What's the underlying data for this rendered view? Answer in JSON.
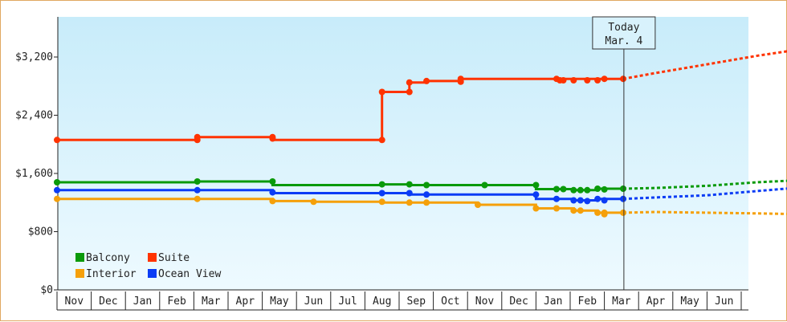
{
  "chart_data": {
    "type": "line",
    "y_ticks": [
      "$0",
      "$800",
      "$1,600",
      "$2,400",
      "$3,200"
    ],
    "ylim": [
      0,
      3200
    ],
    "x_labels": [
      "Nov",
      "Dec",
      "Jan",
      "Feb",
      "Mar",
      "Apr",
      "May",
      "Jun",
      "Jul",
      "Aug",
      "Sep",
      "Oct",
      "Nov",
      "Dec",
      "Jan",
      "Feb",
      "Mar",
      "Apr",
      "May",
      "Jun"
    ],
    "today": {
      "title": "Today",
      "date": "Mar. 4",
      "month_index": 16.07
    },
    "grid": false,
    "legend_position": "bottom-left",
    "series": [
      {
        "name": "Balcony",
        "color": "#0a9a0a",
        "points": [
          [
            -0.5,
            1479
          ],
          [
            3.6,
            1479
          ],
          [
            3.6,
            1490
          ],
          [
            5.8,
            1490
          ],
          [
            5.8,
            1440
          ],
          [
            9.0,
            1440
          ],
          [
            9.0,
            1450
          ],
          [
            9.8,
            1450
          ],
          [
            9.8,
            1440
          ],
          [
            13.5,
            1440
          ],
          [
            13.5,
            1385
          ],
          [
            14.6,
            1385
          ],
          [
            14.6,
            1370
          ],
          [
            15.3,
            1370
          ],
          [
            15.3,
            1390
          ],
          [
            16.05,
            1390
          ]
        ],
        "markers": [
          [
            -0.5,
            1479
          ],
          [
            3.6,
            1490
          ],
          [
            5.8,
            1490
          ],
          [
            9.0,
            1450
          ],
          [
            9.8,
            1450
          ],
          [
            10.3,
            1440
          ],
          [
            12.0,
            1440
          ],
          [
            13.5,
            1440
          ],
          [
            14.1,
            1385
          ],
          [
            14.3,
            1385
          ],
          [
            14.6,
            1370
          ],
          [
            14.8,
            1370
          ],
          [
            15.0,
            1370
          ],
          [
            15.3,
            1390
          ],
          [
            15.5,
            1380
          ],
          [
            16.05,
            1390
          ]
        ],
        "forecast": [
          [
            16.05,
            1390
          ],
          [
            17.0,
            1400
          ],
          [
            18.5,
            1430
          ],
          [
            20.0,
            1480
          ],
          [
            21.3,
            1510
          ]
        ]
      },
      {
        "name": "Suite",
        "color": "#ff3300",
        "points": [
          [
            -0.5,
            2060
          ],
          [
            3.6,
            2060
          ],
          [
            3.6,
            2100
          ],
          [
            5.8,
            2100
          ],
          [
            5.8,
            2060
          ],
          [
            9.0,
            2060
          ],
          [
            9.0,
            2720
          ],
          [
            9.8,
            2720
          ],
          [
            9.8,
            2850
          ],
          [
            10.3,
            2850
          ],
          [
            10.3,
            2870
          ],
          [
            11.3,
            2870
          ],
          [
            11.3,
            2900
          ],
          [
            13.5,
            2900
          ],
          [
            16.05,
            2900
          ]
        ],
        "markers": [
          [
            -0.5,
            2060
          ],
          [
            3.6,
            2060
          ],
          [
            3.6,
            2100
          ],
          [
            5.8,
            2100
          ],
          [
            5.8,
            2080
          ],
          [
            9.0,
            2060
          ],
          [
            9.0,
            2720
          ],
          [
            9.8,
            2720
          ],
          [
            9.8,
            2850
          ],
          [
            10.3,
            2870
          ],
          [
            11.3,
            2860
          ],
          [
            11.3,
            2900
          ],
          [
            14.1,
            2900
          ],
          [
            14.2,
            2880
          ],
          [
            14.3,
            2880
          ],
          [
            14.6,
            2880
          ],
          [
            15.0,
            2880
          ],
          [
            15.3,
            2880
          ],
          [
            15.5,
            2900
          ],
          [
            16.05,
            2900
          ]
        ],
        "forecast": [
          [
            16.05,
            2900
          ],
          [
            17.0,
            2980
          ],
          [
            18.5,
            3100
          ],
          [
            20.0,
            3220
          ],
          [
            21.3,
            3310
          ]
        ]
      },
      {
        "name": "Interior",
        "color": "#f5a00a",
        "points": [
          [
            -0.5,
            1250
          ],
          [
            5.8,
            1250
          ],
          [
            5.8,
            1220
          ],
          [
            7.0,
            1220
          ],
          [
            7.0,
            1210
          ],
          [
            9.0,
            1210
          ],
          [
            9.0,
            1200
          ],
          [
            11.8,
            1200
          ],
          [
            11.8,
            1170
          ],
          [
            13.5,
            1170
          ],
          [
            13.5,
            1120
          ],
          [
            14.6,
            1120
          ],
          [
            14.6,
            1090
          ],
          [
            15.3,
            1090
          ],
          [
            15.3,
            1060
          ],
          [
            16.05,
            1060
          ]
        ],
        "markers": [
          [
            -0.5,
            1250
          ],
          [
            3.6,
            1250
          ],
          [
            5.8,
            1220
          ],
          [
            7.0,
            1210
          ],
          [
            9.0,
            1210
          ],
          [
            9.8,
            1200
          ],
          [
            10.3,
            1200
          ],
          [
            11.8,
            1170
          ],
          [
            13.5,
            1120
          ],
          [
            14.1,
            1120
          ],
          [
            14.6,
            1090
          ],
          [
            14.8,
            1090
          ],
          [
            15.3,
            1060
          ],
          [
            15.5,
            1060
          ],
          [
            15.5,
            1040
          ],
          [
            16.05,
            1060
          ]
        ],
        "forecast": [
          [
            16.05,
            1060
          ],
          [
            17.0,
            1070
          ],
          [
            18.5,
            1060
          ],
          [
            20.0,
            1050
          ],
          [
            21.3,
            1040
          ]
        ]
      },
      {
        "name": "Ocean View",
        "color": "#0b3cf5",
        "points": [
          [
            -0.5,
            1370
          ],
          [
            5.8,
            1370
          ],
          [
            5.8,
            1330
          ],
          [
            9.0,
            1330
          ],
          [
            9.0,
            1330
          ],
          [
            9.8,
            1330
          ],
          [
            9.8,
            1310
          ],
          [
            13.5,
            1310
          ],
          [
            13.5,
            1250
          ],
          [
            14.6,
            1250
          ],
          [
            14.6,
            1230
          ],
          [
            15.3,
            1230
          ],
          [
            15.3,
            1250
          ],
          [
            16.05,
            1250
          ]
        ],
        "markers": [
          [
            -0.5,
            1370
          ],
          [
            3.6,
            1370
          ],
          [
            5.8,
            1340
          ],
          [
            9.0,
            1330
          ],
          [
            9.8,
            1330
          ],
          [
            10.3,
            1310
          ],
          [
            13.5,
            1310
          ],
          [
            14.1,
            1250
          ],
          [
            14.6,
            1230
          ],
          [
            14.8,
            1230
          ],
          [
            15.0,
            1220
          ],
          [
            15.3,
            1250
          ],
          [
            15.5,
            1230
          ],
          [
            16.05,
            1250
          ]
        ],
        "forecast": [
          [
            16.05,
            1250
          ],
          [
            17.0,
            1270
          ],
          [
            18.5,
            1300
          ],
          [
            20.0,
            1360
          ],
          [
            21.3,
            1410
          ]
        ]
      }
    ]
  }
}
